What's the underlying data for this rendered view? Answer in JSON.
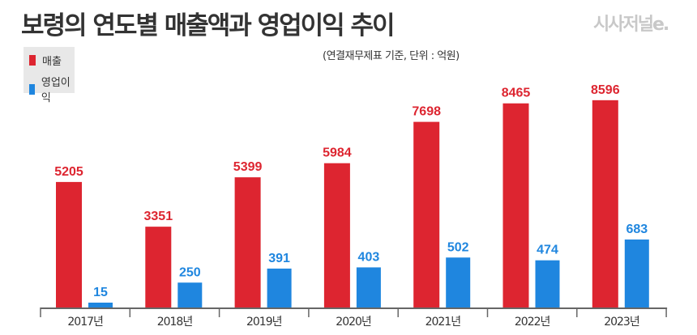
{
  "title": "보령의 연도별 매출액과 영업이익 추이",
  "logo": "시사저널e.",
  "subtitle": "(연결재무제표 기준, 단위 : 억원)",
  "colors": {
    "revenue": "#dd2530",
    "operating_profit": "#1f86df",
    "axis": "#666666"
  },
  "chart_data": {
    "type": "bar",
    "title": "보령의 연도별 매출액과 영업이익 추이",
    "unit": "억원",
    "categories": [
      "2017년",
      "2018년",
      "2019년",
      "2020년",
      "2021년",
      "2022년",
      "2023년"
    ],
    "series": [
      {
        "name": "매출",
        "values": [
          5205,
          3351,
          5399,
          5984,
          7698,
          8465,
          8596
        ]
      },
      {
        "name": "영업이익",
        "values": [
          15,
          250,
          391,
          403,
          502,
          474,
          683
        ]
      }
    ],
    "legend": "top-left",
    "grid": false
  }
}
